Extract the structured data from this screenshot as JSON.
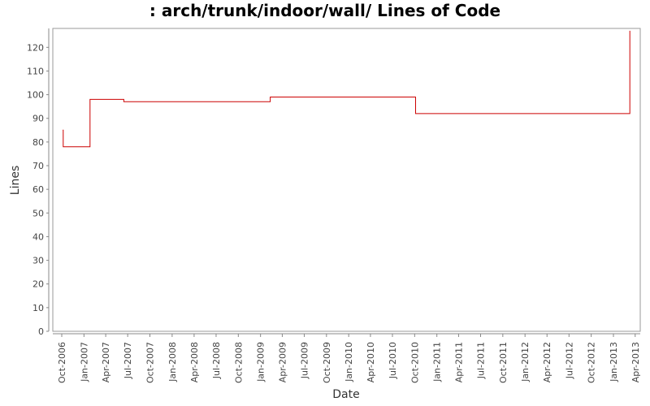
{
  "chart_data": {
    "type": "line",
    "title": ": arch/trunk/indoor/wall/ Lines of Code",
    "xlabel": "Date",
    "ylabel": "Lines",
    "ylim": [
      0,
      128
    ],
    "yticks": [
      0,
      10,
      20,
      30,
      40,
      50,
      60,
      70,
      80,
      90,
      100,
      110,
      120
    ],
    "xlim": [
      "2006-08-25",
      "2013-04-22"
    ],
    "xticks": [
      {
        "date": "2006-10-01",
        "label": "Oct-2006"
      },
      {
        "date": "2007-01-01",
        "label": "Jan-2007"
      },
      {
        "date": "2007-04-01",
        "label": "Apr-2007"
      },
      {
        "date": "2007-07-01",
        "label": "Jul-2007"
      },
      {
        "date": "2007-10-01",
        "label": "Oct-2007"
      },
      {
        "date": "2008-01-01",
        "label": "Jan-2008"
      },
      {
        "date": "2008-04-01",
        "label": "Apr-2008"
      },
      {
        "date": "2008-07-01",
        "label": "Jul-2008"
      },
      {
        "date": "2008-10-01",
        "label": "Oct-2008"
      },
      {
        "date": "2009-01-01",
        "label": "Jan-2009"
      },
      {
        "date": "2009-04-01",
        "label": "Apr-2009"
      },
      {
        "date": "2009-07-01",
        "label": "Jul-2009"
      },
      {
        "date": "2009-10-01",
        "label": "Oct-2009"
      },
      {
        "date": "2010-01-01",
        "label": "Jan-2010"
      },
      {
        "date": "2010-04-01",
        "label": "Apr-2010"
      },
      {
        "date": "2010-07-01",
        "label": "Jul-2010"
      },
      {
        "date": "2010-10-01",
        "label": "Oct-2010"
      },
      {
        "date": "2011-01-01",
        "label": "Jan-2011"
      },
      {
        "date": "2011-04-01",
        "label": "Apr-2011"
      },
      {
        "date": "2011-07-01",
        "label": "Jul-2011"
      },
      {
        "date": "2011-10-01",
        "label": "Oct-2011"
      },
      {
        "date": "2012-01-01",
        "label": "Jan-2012"
      },
      {
        "date": "2012-04-01",
        "label": "Apr-2012"
      },
      {
        "date": "2012-07-01",
        "label": "Jul-2012"
      },
      {
        "date": "2012-10-01",
        "label": "Oct-2012"
      },
      {
        "date": "2013-01-01",
        "label": "Jan-2013"
      },
      {
        "date": "2013-04-01",
        "label": "Apr-2013"
      }
    ],
    "step": true,
    "grid": false,
    "legend": "none",
    "series": [
      {
        "color": "#cc0000",
        "points": [
          {
            "date": "2006-10-05",
            "value": 85
          },
          {
            "date": "2006-10-07",
            "value": 78
          },
          {
            "date": "2007-01-26",
            "value": 98
          },
          {
            "date": "2007-06-15",
            "value": 97
          },
          {
            "date": "2009-02-10",
            "value": 99
          },
          {
            "date": "2010-10-05",
            "value": 92
          },
          {
            "date": "2013-03-10",
            "value": 127
          }
        ]
      }
    ]
  }
}
